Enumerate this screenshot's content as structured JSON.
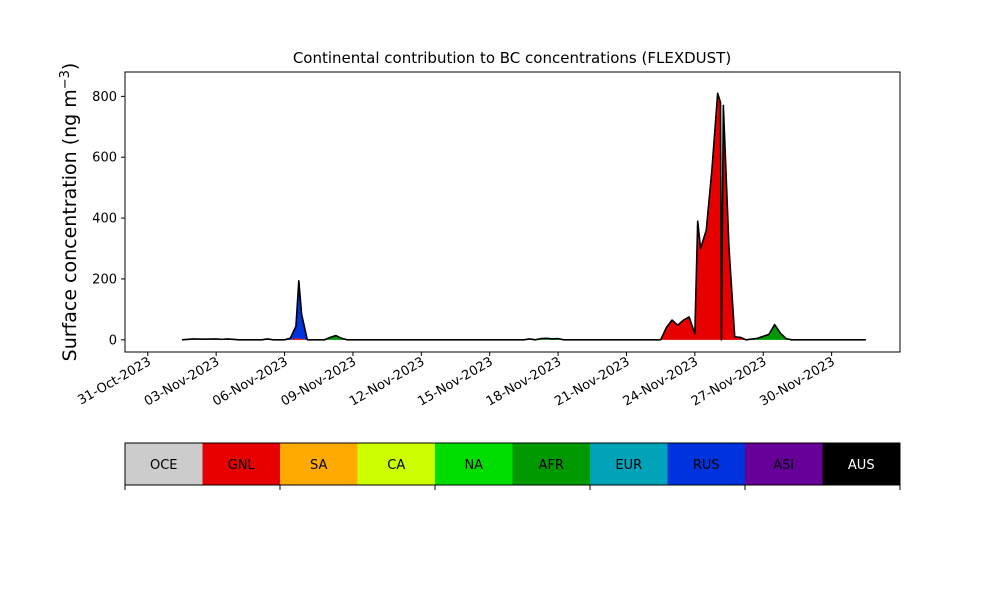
{
  "chart_data": {
    "type": "area",
    "title": "Continental contribution to BC concentrations (FLEXDUST)",
    "xlabel": "",
    "ylabel": "Surface concentration (ng m",
    "ylabel_sup": "−3",
    "ylabel_close": ")",
    "x_range": [
      "2023-10-30",
      "2023-12-03"
    ],
    "ylim": [
      -40,
      880
    ],
    "y_ticks": [
      0,
      200,
      400,
      600,
      800
    ],
    "x_ticks": [
      "31-Oct-2023",
      "03-Nov-2023",
      "06-Nov-2023",
      "09-Nov-2023",
      "12-Nov-2023",
      "15-Nov-2023",
      "18-Nov-2023",
      "21-Nov-2023",
      "24-Nov-2023",
      "27-Nov-2023",
      "30-Nov-2023"
    ],
    "x_tick_dates": [
      "2023-10-31",
      "2023-11-03",
      "2023-11-06",
      "2023-11-09",
      "2023-11-12",
      "2023-11-15",
      "2023-11-18",
      "2023-11-21",
      "2023-11-24",
      "2023-11-27",
      "2023-11-30"
    ],
    "grid": false,
    "legend_position": "bottom",
    "series_order_bottom_up": [
      "GNL",
      "AFR",
      "RUS",
      "NA",
      "SA",
      "OCE"
    ],
    "series": [
      {
        "name": "GNL",
        "color": "#e60000",
        "points": [
          [
            "2023-11-01T12:00",
            0
          ],
          [
            "2023-11-02T12:00",
            0
          ],
          [
            "2023-11-03T06:00",
            0
          ],
          [
            "2023-11-03T12:00",
            3
          ],
          [
            "2023-11-04T00:00",
            0
          ],
          [
            "2023-11-05T00:00",
            0
          ],
          [
            "2023-11-05T06:00",
            3
          ],
          [
            "2023-11-05T12:00",
            0
          ],
          [
            "2023-11-06T06:00",
            0
          ],
          [
            "2023-11-06T12:00",
            5
          ],
          [
            "2023-11-06T18:00",
            3
          ],
          [
            "2023-11-07T00:00",
            0
          ],
          [
            "2023-11-22T12:00",
            0
          ],
          [
            "2023-11-22T18:00",
            40
          ],
          [
            "2023-11-23T00:00",
            65
          ],
          [
            "2023-11-23T06:00",
            48
          ],
          [
            "2023-11-23T12:00",
            65
          ],
          [
            "2023-11-23T18:00",
            75
          ],
          [
            "2023-11-24T00:00",
            20
          ],
          [
            "2023-11-24T03:00",
            390
          ],
          [
            "2023-11-24T06:00",
            300
          ],
          [
            "2023-11-24T12:00",
            360
          ],
          [
            "2023-11-24T18:00",
            560
          ],
          [
            "2023-11-25T00:00",
            810
          ],
          [
            "2023-11-25T03:00",
            780
          ],
          [
            "2023-11-25T04:00",
            0
          ],
          [
            "2023-11-25T06:00",
            770
          ],
          [
            "2023-11-25T12:00",
            300
          ],
          [
            "2023-11-25T18:00",
            10
          ],
          [
            "2023-11-26T00:00",
            8
          ],
          [
            "2023-11-26T06:00",
            0
          ],
          [
            "2023-12-01T12:00",
            0
          ]
        ]
      },
      {
        "name": "AFR",
        "color": "#009900",
        "points": [
          [
            "2023-11-01T12:00",
            0
          ],
          [
            "2023-11-07T18:00",
            0
          ],
          [
            "2023-11-08T00:00",
            8
          ],
          [
            "2023-11-08T06:00",
            14
          ],
          [
            "2023-11-08T12:00",
            5
          ],
          [
            "2023-11-08T18:00",
            0
          ],
          [
            "2023-11-17T00:00",
            0
          ],
          [
            "2023-11-17T06:00",
            4
          ],
          [
            "2023-11-17T12:00",
            5
          ],
          [
            "2023-11-17T18:00",
            3
          ],
          [
            "2023-11-18T00:00",
            4
          ],
          [
            "2023-11-18T06:00",
            0
          ],
          [
            "2023-11-26T06:00",
            0
          ],
          [
            "2023-11-26T18:00",
            5
          ],
          [
            "2023-11-27T06:00",
            18
          ],
          [
            "2023-11-27T12:00",
            50
          ],
          [
            "2023-11-27T18:00",
            22
          ],
          [
            "2023-11-28T00:00",
            4
          ],
          [
            "2023-11-28T06:00",
            0
          ],
          [
            "2023-12-01T12:00",
            0
          ]
        ]
      },
      {
        "name": "RUS",
        "color": "#0033dd",
        "points": [
          [
            "2023-11-01T12:00",
            0
          ],
          [
            "2023-11-06T00:00",
            0
          ],
          [
            "2023-11-06T06:00",
            5
          ],
          [
            "2023-11-06T12:00",
            40
          ],
          [
            "2023-11-06T15:00",
            190
          ],
          [
            "2023-11-06T18:00",
            80
          ],
          [
            "2023-11-07T00:00",
            0
          ],
          [
            "2023-12-01T12:00",
            0
          ]
        ]
      },
      {
        "name": "NA",
        "color": "#00dd00",
        "points": [
          [
            "2023-11-01T12:00",
            0
          ],
          [
            "2023-11-02T00:00",
            0
          ],
          [
            "2023-11-02T12:00",
            2
          ],
          [
            "2023-11-03T00:00",
            0
          ],
          [
            "2023-11-16T12:00",
            0
          ],
          [
            "2023-11-16T18:00",
            3
          ],
          [
            "2023-11-17T00:00",
            0
          ],
          [
            "2023-12-01T12:00",
            0
          ]
        ]
      },
      {
        "name": "SA",
        "color": "#ffaa00",
        "points": [
          [
            "2023-11-01T12:00",
            0
          ],
          [
            "2023-11-02T12:00",
            0
          ],
          [
            "2023-11-03T00:00",
            3
          ],
          [
            "2023-11-03T12:00",
            0
          ],
          [
            "2023-12-01T12:00",
            0
          ]
        ]
      },
      {
        "name": "OCE",
        "color": "#cccccc",
        "points": [
          [
            "2023-11-01T12:00",
            0
          ],
          [
            "2023-11-02T00:00",
            3
          ],
          [
            "2023-11-02T12:00",
            0
          ],
          [
            "2023-12-01T12:00",
            0
          ]
        ]
      }
    ],
    "total_line_color": "#000000"
  },
  "legend": {
    "items": [
      {
        "label": "OCE",
        "color": "#cccccc",
        "text_color": "#000000"
      },
      {
        "label": "GNL",
        "color": "#e60000",
        "text_color": "#000000"
      },
      {
        "label": "SA",
        "color": "#ffaa00",
        "text_color": "#000000"
      },
      {
        "label": "CA",
        "color": "#ccff00",
        "text_color": "#000000"
      },
      {
        "label": "NA",
        "color": "#00dd00",
        "text_color": "#000000"
      },
      {
        "label": "AFR",
        "color": "#009900",
        "text_color": "#000000"
      },
      {
        "label": "EUR",
        "color": "#00a3b8",
        "text_color": "#000000"
      },
      {
        "label": "RUS",
        "color": "#0033dd",
        "text_color": "#000000"
      },
      {
        "label": "ASI",
        "color": "#660099",
        "text_color": "#000000"
      },
      {
        "label": "AUS",
        "color": "#000000",
        "text_color": "#ffffff"
      }
    ]
  }
}
